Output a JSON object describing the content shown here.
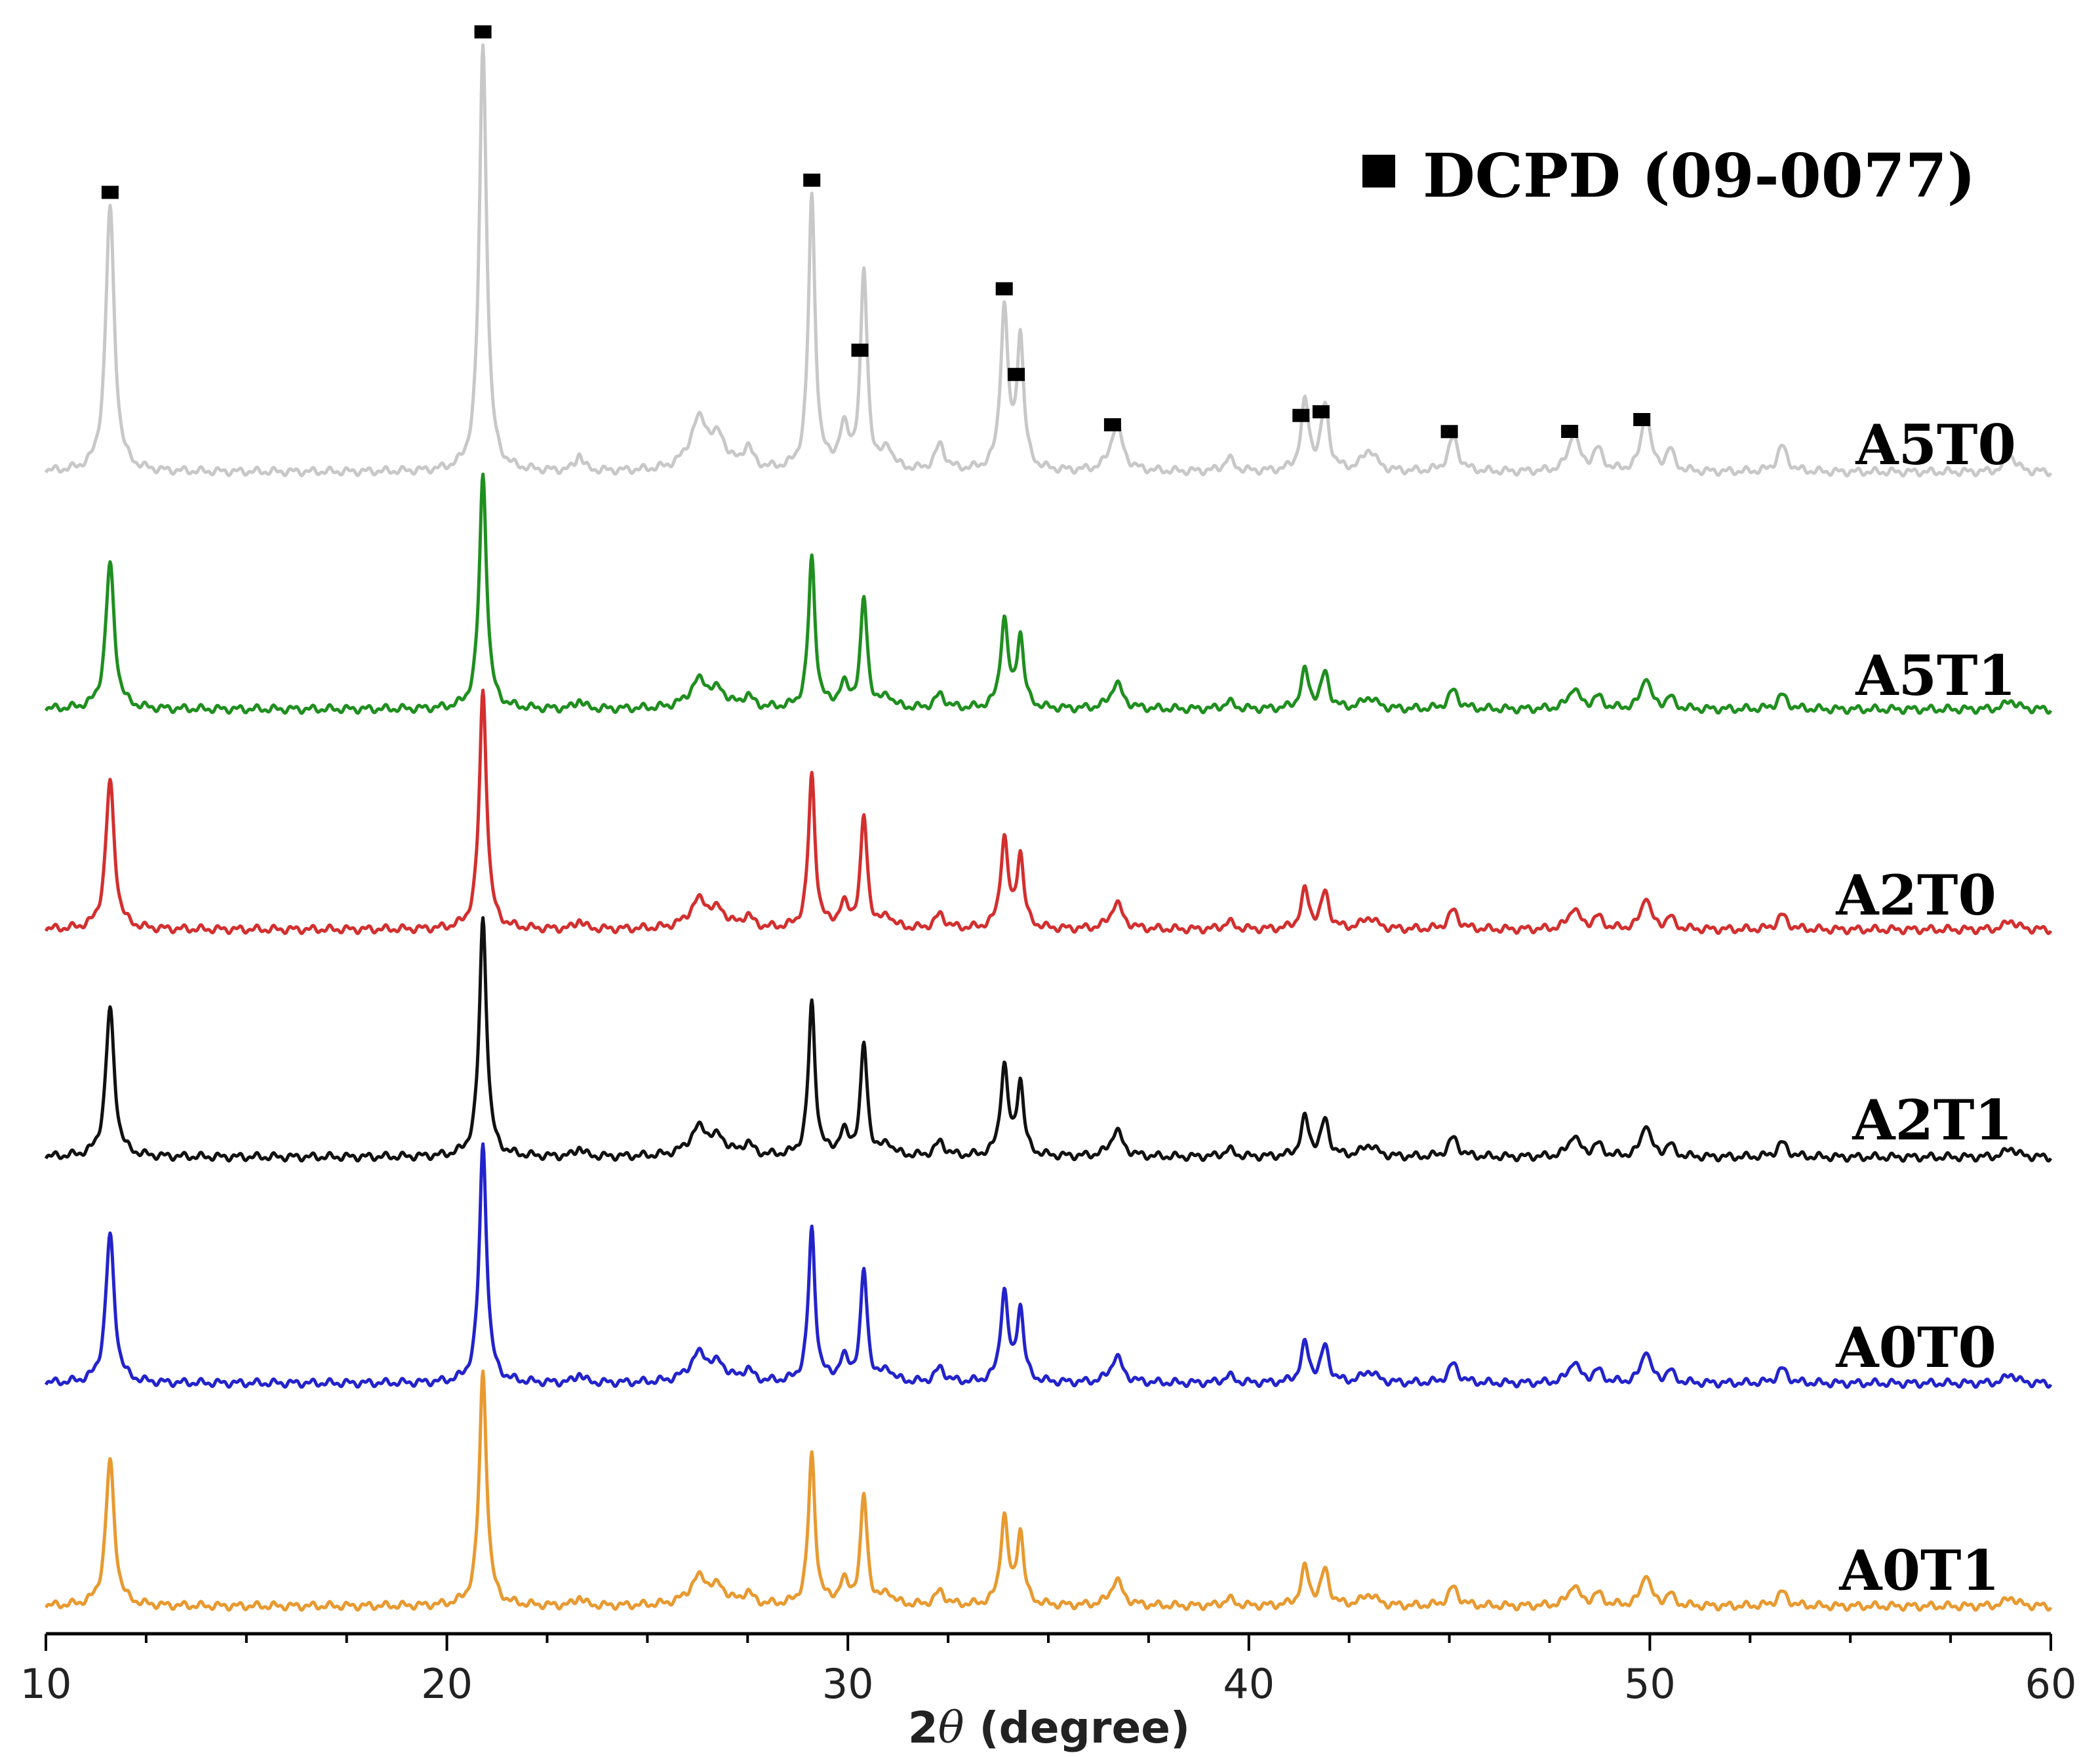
{
  "chart_data": {
    "type": "line",
    "title": "",
    "xlabel": "2θ (degree)",
    "xlabel_prefix": "2",
    "xlabel_symbol": "θ",
    "xlabel_suffix": " (degree)",
    "ylabel": "",
    "xlim": [
      10,
      60
    ],
    "xticks": [
      10,
      20,
      30,
      40,
      50,
      60
    ],
    "xtick_labels": [
      "10",
      "20",
      "30",
      "40",
      "50",
      "60"
    ],
    "y_axis_visible": false,
    "legend": {
      "position": "top-right",
      "entries": [
        {
          "marker": "filled-square",
          "label": "DCPD (09-0077)"
        }
      ]
    },
    "dcpd_markers": [
      11.6,
      20.9,
      29.1,
      30.3,
      33.9,
      34.2,
      36.6,
      41.3,
      41.8,
      45.0,
      48.0,
      49.8
    ],
    "peaks": [
      {
        "pos": 11.6,
        "h": 0.62,
        "w": 0.13
      },
      {
        "pos": 20.9,
        "h": 1.0,
        "w": 0.11
      },
      {
        "pos": 23.3,
        "h": 0.04,
        "w": 0.1
      },
      {
        "pos": 26.3,
        "h": 0.12,
        "w": 0.3
      },
      {
        "pos": 26.8,
        "h": 0.06,
        "w": 0.2
      },
      {
        "pos": 27.5,
        "h": 0.05,
        "w": 0.15
      },
      {
        "pos": 29.1,
        "h": 0.64,
        "w": 0.1
      },
      {
        "pos": 29.9,
        "h": 0.09,
        "w": 0.15
      },
      {
        "pos": 30.4,
        "h": 0.46,
        "w": 0.1
      },
      {
        "pos": 31.0,
        "h": 0.05,
        "w": 0.14
      },
      {
        "pos": 32.3,
        "h": 0.06,
        "w": 0.15
      },
      {
        "pos": 33.9,
        "h": 0.38,
        "w": 0.11
      },
      {
        "pos": 34.3,
        "h": 0.31,
        "w": 0.1
      },
      {
        "pos": 36.7,
        "h": 0.11,
        "w": 0.18
      },
      {
        "pos": 39.5,
        "h": 0.03,
        "w": 0.15
      },
      {
        "pos": 41.4,
        "h": 0.16,
        "w": 0.12
      },
      {
        "pos": 41.9,
        "h": 0.15,
        "w": 0.12
      },
      {
        "pos": 43.0,
        "h": 0.05,
        "w": 0.2
      },
      {
        "pos": 45.1,
        "h": 0.08,
        "w": 0.15
      },
      {
        "pos": 48.1,
        "h": 0.09,
        "w": 0.15
      },
      {
        "pos": 48.7,
        "h": 0.05,
        "w": 0.15
      },
      {
        "pos": 49.9,
        "h": 0.14,
        "w": 0.13
      },
      {
        "pos": 50.5,
        "h": 0.05,
        "w": 0.12
      },
      {
        "pos": 53.3,
        "h": 0.06,
        "w": 0.15
      },
      {
        "pos": 59.0,
        "h": 0.04,
        "w": 0.15
      }
    ],
    "series": [
      {
        "name": "A5T0",
        "color": "#c8c8c8",
        "peak_scale": 1.0
      },
      {
        "name": "A5T1",
        "color": "#1f8f1f",
        "peak_scale": 0.55
      },
      {
        "name": "A2T0",
        "color": "#d32f2f",
        "peak_scale": 0.56
      },
      {
        "name": "A2T1",
        "color": "#111111",
        "peak_scale": 0.56
      },
      {
        "name": "A0T0",
        "color": "#2323cc",
        "peak_scale": 0.56
      },
      {
        "name": "A0T1",
        "color": "#e89a30",
        "peak_scale": 0.55
      }
    ]
  }
}
